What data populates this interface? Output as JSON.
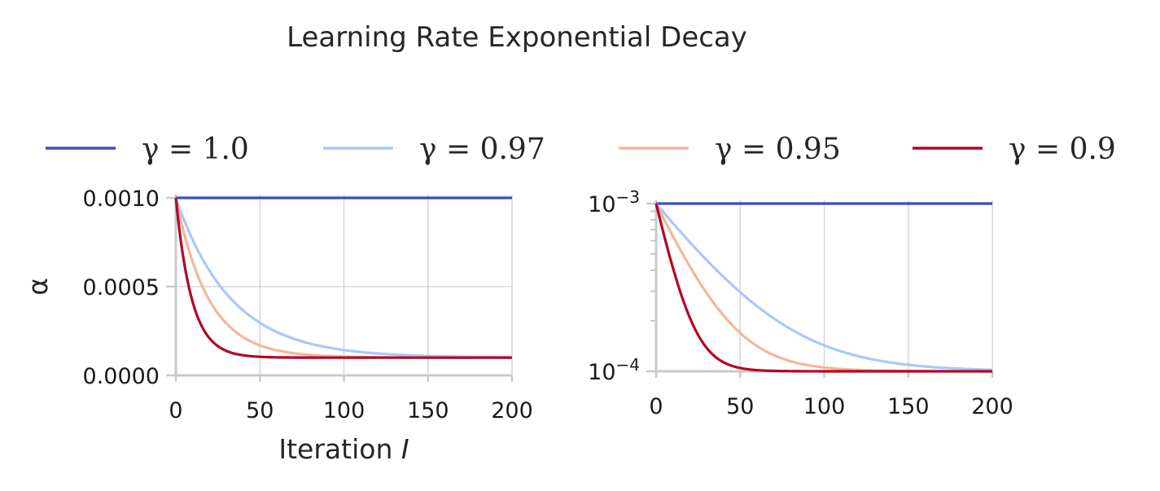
{
  "chart_data": {
    "type": "line",
    "title": "Learning Rate Exponential Decay",
    "legend": {
      "placement": "top",
      "entries": [
        {
          "label": "γ = 1.0",
          "color": "#3b4cc0"
        },
        {
          "label": "γ = 0.97",
          "color": "#aac7fd"
        },
        {
          "label": "γ = 0.95",
          "color": "#f7b599"
        },
        {
          "label": "γ = 0.9",
          "color": "#b40426"
        }
      ]
    },
    "formula": {
      "alpha0": 0.001,
      "alpha_min": 0.0001
    },
    "series": [
      {
        "name": "γ = 1.0",
        "gamma": 1.0,
        "color": "#3b4cc0"
      },
      {
        "name": "γ = 0.97",
        "gamma": 0.97,
        "color": "#aac7fd"
      },
      {
        "name": "γ = 0.95",
        "gamma": 0.95,
        "color": "#f7b599"
      },
      {
        "name": "γ = 0.9",
        "gamma": 0.9,
        "color": "#b40426"
      }
    ],
    "xlim": [
      0,
      200
    ],
    "panels": [
      {
        "scale": "linear",
        "xlabel_base": "Iteration",
        "xlabel_var": "I",
        "ylabel": "α",
        "ylim": [
          0,
          0.001
        ],
        "xticks": [
          0,
          50,
          100,
          150,
          200
        ],
        "xtick_labels": [
          "0",
          "50",
          "100",
          "150",
          "200"
        ],
        "yticks": [
          0,
          0.0005,
          0.001
        ],
        "ytick_labels": [
          "0.0000",
          "0.0005",
          "0.0010"
        ]
      },
      {
        "scale": "log",
        "xlabel_base": "",
        "xlabel_var": "",
        "ylabel": "",
        "ylim": [
          0.0001,
          0.001
        ],
        "xticks": [
          0,
          50,
          100,
          150,
          200
        ],
        "xtick_labels": [
          "0",
          "50",
          "100",
          "150",
          "200"
        ],
        "yticks": [
          0.0001,
          0.001
        ],
        "ytick_labels": [
          {
            "base": "10",
            "exp": "−4"
          },
          {
            "base": "10",
            "exp": "−3"
          }
        ]
      }
    ]
  }
}
